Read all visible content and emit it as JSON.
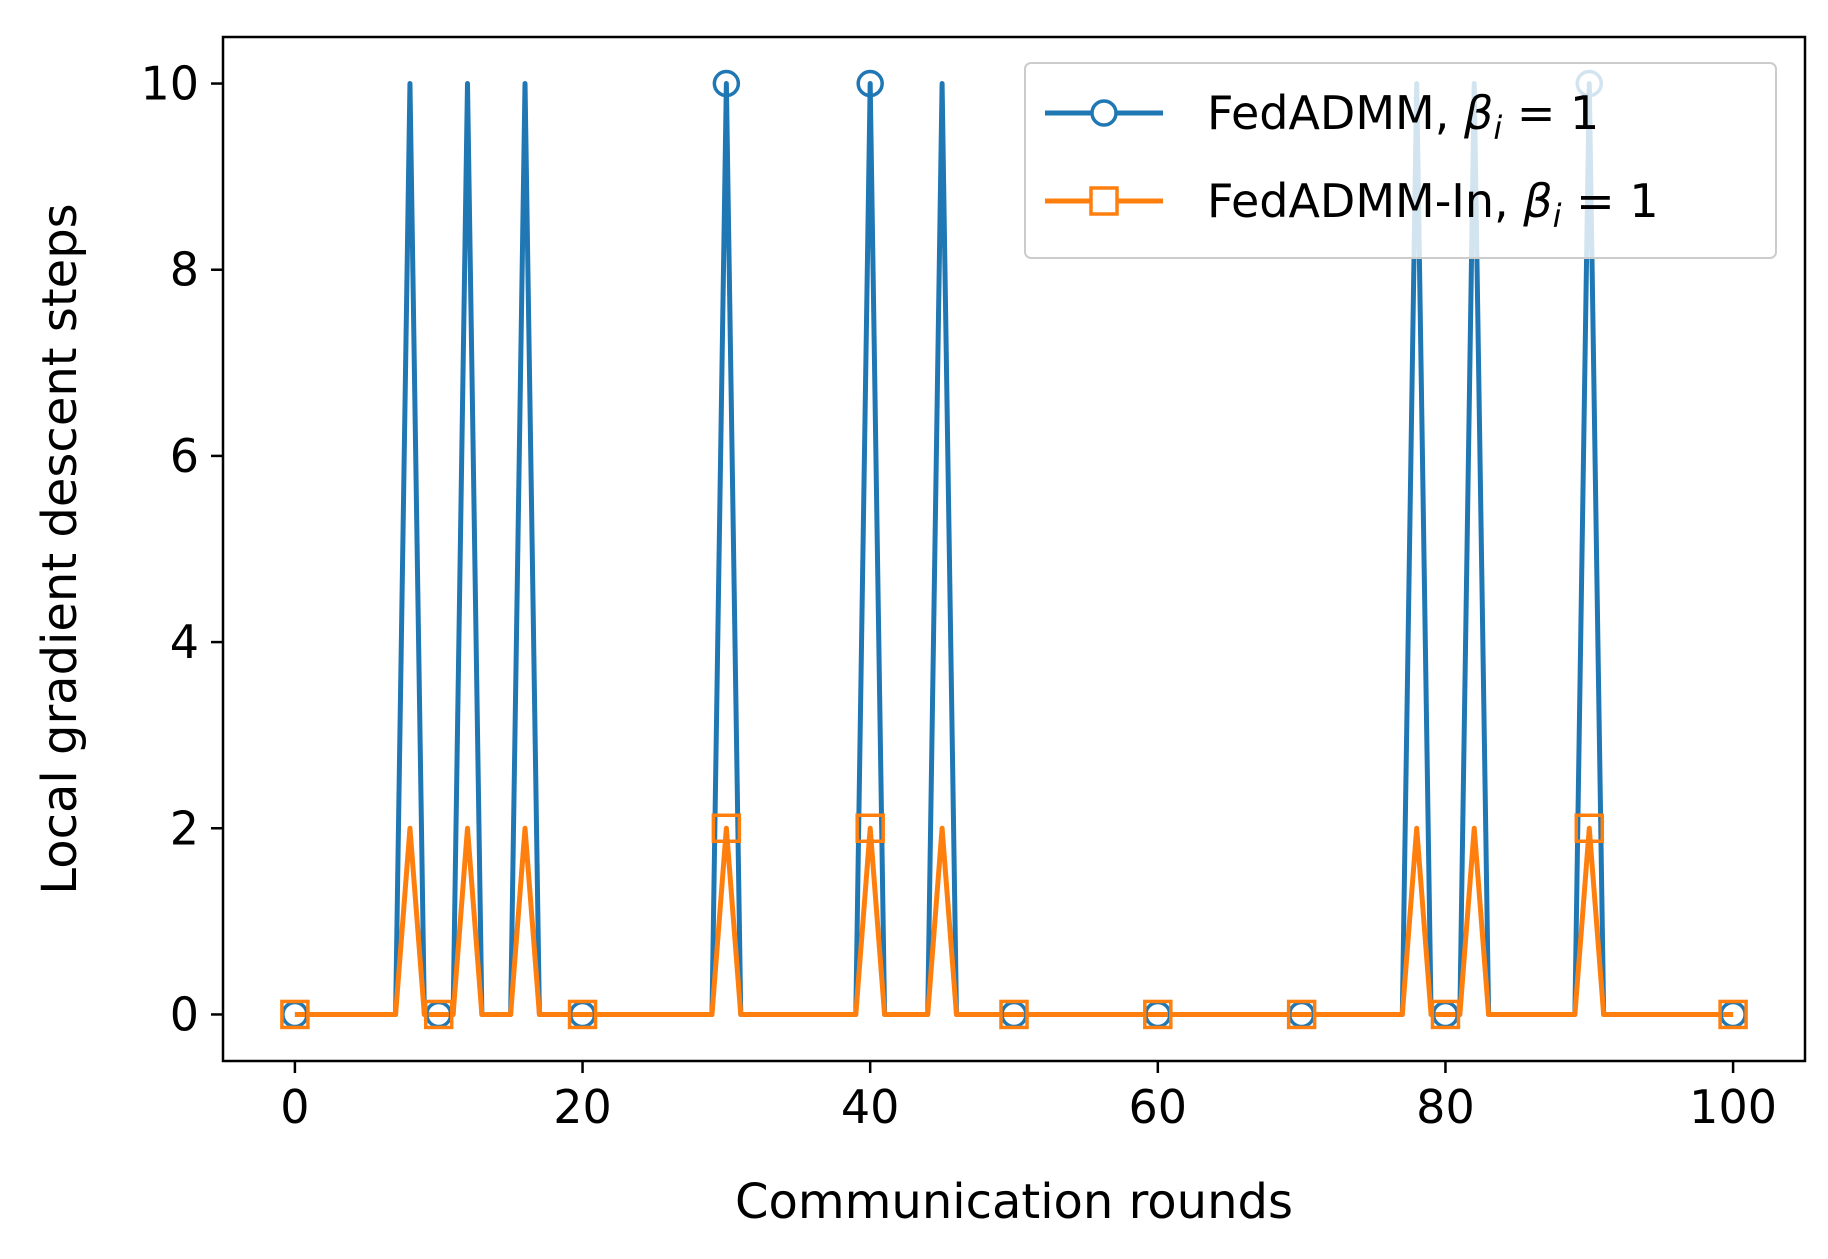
{
  "chart_data": {
    "type": "line",
    "xlabel": "Communication rounds",
    "ylabel": "Local gradient descent steps",
    "xlim": [
      -5,
      105
    ],
    "ylim": [
      -0.5,
      10.5
    ],
    "xticks": [
      0,
      20,
      40,
      60,
      80,
      100
    ],
    "yticks": [
      0,
      2,
      4,
      6,
      8,
      10
    ],
    "grid": false,
    "legend_position": "top-right",
    "x": [
      0,
      1,
      2,
      3,
      4,
      5,
      6,
      7,
      8,
      9,
      10,
      11,
      12,
      13,
      14,
      15,
      16,
      17,
      18,
      19,
      20,
      21,
      22,
      23,
      24,
      25,
      26,
      27,
      28,
      29,
      30,
      31,
      32,
      33,
      34,
      35,
      36,
      37,
      38,
      39,
      40,
      41,
      42,
      43,
      44,
      45,
      46,
      47,
      48,
      49,
      50,
      51,
      52,
      53,
      54,
      55,
      56,
      57,
      58,
      59,
      60,
      61,
      62,
      63,
      64,
      65,
      66,
      67,
      68,
      69,
      70,
      71,
      72,
      73,
      74,
      75,
      76,
      77,
      78,
      79,
      80,
      81,
      82,
      83,
      84,
      85,
      86,
      87,
      88,
      89,
      90,
      91,
      92,
      93,
      94,
      95,
      96,
      97,
      98,
      99,
      100
    ],
    "series": [
      {
        "name": "FedADMM, β_i = 1",
        "color": "#1f77b4",
        "marker": "circle",
        "markevery": 10,
        "values": [
          0,
          0,
          0,
          0,
          0,
          0,
          0,
          0,
          10,
          0,
          0,
          0,
          10,
          0,
          0,
          0,
          10,
          0,
          0,
          0,
          0,
          0,
          0,
          0,
          0,
          0,
          0,
          0,
          0,
          0,
          10,
          0,
          0,
          0,
          0,
          0,
          0,
          0,
          0,
          0,
          10,
          0,
          0,
          0,
          0,
          10,
          0,
          0,
          0,
          0,
          0,
          0,
          0,
          0,
          0,
          0,
          0,
          0,
          0,
          0,
          0,
          0,
          0,
          0,
          0,
          0,
          0,
          0,
          0,
          0,
          0,
          0,
          0,
          0,
          0,
          0,
          0,
          0,
          10,
          0,
          0,
          0,
          10,
          0,
          0,
          0,
          0,
          0,
          0,
          0,
          10,
          0,
          0,
          0,
          0,
          0,
          0,
          0,
          0,
          0,
          0
        ]
      },
      {
        "name": "FedADMM-In, β_i = 1",
        "color": "#ff7f0e",
        "marker": "square",
        "markevery": 10,
        "values": [
          0,
          0,
          0,
          0,
          0,
          0,
          0,
          0,
          2,
          0,
          0,
          0,
          2,
          0,
          0,
          0,
          2,
          0,
          0,
          0,
          0,
          0,
          0,
          0,
          0,
          0,
          0,
          0,
          0,
          0,
          2,
          0,
          0,
          0,
          0,
          0,
          0,
          0,
          0,
          0,
          2,
          0,
          0,
          0,
          0,
          2,
          0,
          0,
          0,
          0,
          0,
          0,
          0,
          0,
          0,
          0,
          0,
          0,
          0,
          0,
          0,
          0,
          0,
          0,
          0,
          0,
          0,
          0,
          0,
          0,
          0,
          0,
          0,
          0,
          0,
          0,
          0,
          0,
          2,
          0,
          0,
          0,
          2,
          0,
          0,
          0,
          0,
          0,
          0,
          0,
          2,
          0,
          0,
          0,
          0,
          0,
          0,
          0,
          0,
          0,
          0
        ]
      }
    ],
    "legend": [
      {
        "prefix": "FedADMM, ",
        "beta": "β",
        "sub": "i",
        "suffix": " = 1"
      },
      {
        "prefix": "FedADMM-In, ",
        "beta": "β",
        "sub": "i",
        "suffix": " = 1"
      }
    ]
  }
}
